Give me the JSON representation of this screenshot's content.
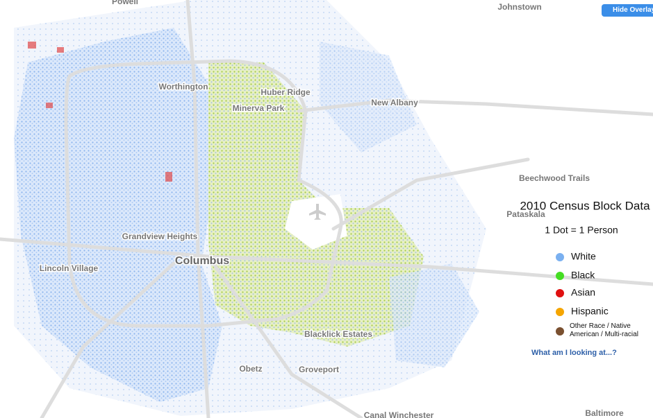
{
  "map_labels": [
    "Powell",
    "Johnstown",
    "Worthington",
    "Huber Ridge",
    "Minerva Park",
    "New Albany",
    "Beechwood Trails",
    "Pataskala",
    "Grandview Heights",
    "Columbus",
    "Lincoln Village",
    "Blacklick Estates",
    "Obetz",
    "Groveport",
    "Canal Winchester",
    "Baltimore"
  ],
  "legend": {
    "title": "2010 Census Block Data",
    "subtitle": "1 Dot = 1 Person",
    "items": [
      {
        "label": "White",
        "color": "#7ab0f0"
      },
      {
        "label": "Black",
        "color": "#44dd22"
      },
      {
        "label": "Asian",
        "color": "#e01010"
      },
      {
        "label": "Hispanic",
        "color": "#f5a500"
      },
      {
        "label": "Other Race / Native American / Multi-racial",
        "color": "#7a5030"
      }
    ],
    "link": "What am I looking at...?"
  },
  "buttons": {
    "hide_overlay": "Hide Overlay"
  }
}
